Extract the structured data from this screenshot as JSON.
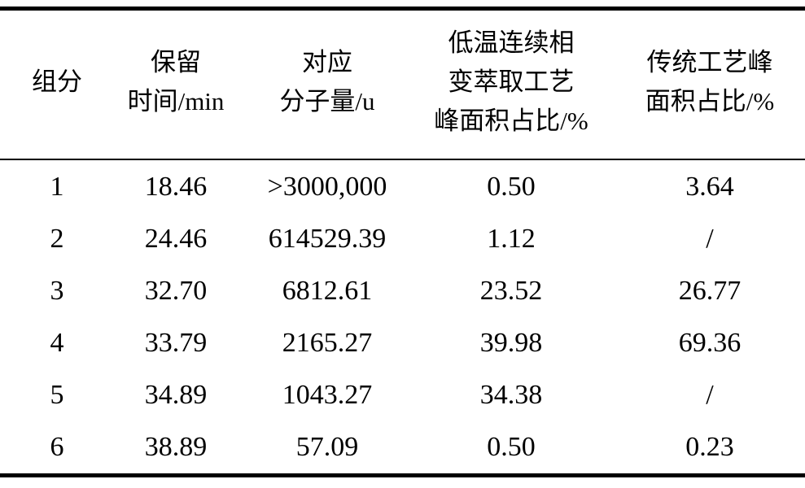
{
  "table": {
    "header": [
      [
        "组分"
      ],
      [
        "保留",
        "时间/min"
      ],
      [
        "对应",
        "分子量/u"
      ],
      [
        "低温连续相",
        "变萃取工艺",
        "峰面积占比/%"
      ],
      [
        "传统工艺峰",
        "面积占比/%"
      ]
    ],
    "rows": [
      [
        "1",
        "18.46",
        ">3000,000",
        "0.50",
        "3.64"
      ],
      [
        "2",
        "24.46",
        "614529.39",
        "1.12",
        "/"
      ],
      [
        "3",
        "32.70",
        "6812.61",
        "23.52",
        "26.77"
      ],
      [
        "4",
        "33.79",
        "2165.27",
        "39.98",
        "69.36"
      ],
      [
        "5",
        "34.89",
        "1043.27",
        "34.38",
        "/"
      ],
      [
        "6",
        "38.89",
        "57.09",
        "0.50",
        "0.23"
      ]
    ]
  }
}
